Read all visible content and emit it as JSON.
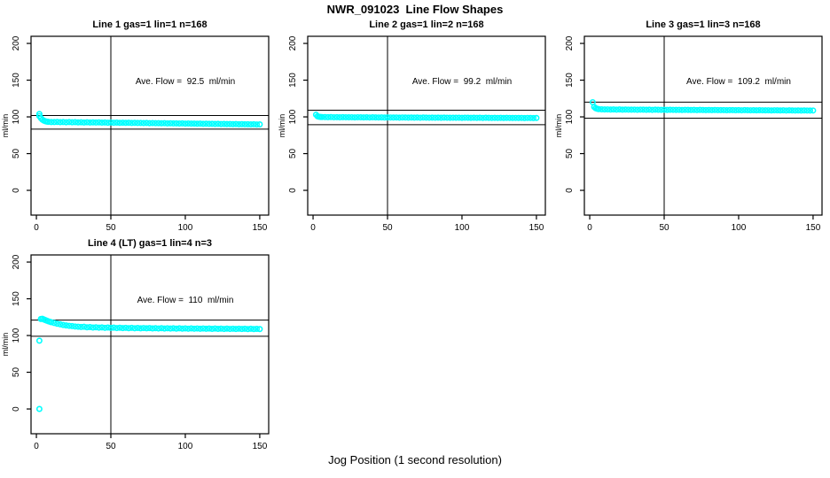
{
  "figure": {
    "main_title": "NWR_091023  Line Flow Shapes",
    "x_axis_label": "Jog Position (1 second resolution)",
    "background_color": "#FFFFFF",
    "point_color": "#00FFFF",
    "axis_color": "#000000"
  },
  "chart_data": [
    {
      "type": "scatter",
      "title": "Line 1 gas=1 lin=1 n=168",
      "ylabel": "ml/min",
      "n": 168,
      "ave_flow": 92.5,
      "ave_flow_label": "Ave. Flow =  92.5  ml/min",
      "x_ticks": [
        0,
        50,
        100,
        150
      ],
      "y_ticks": [
        0,
        50,
        100,
        150,
        200
      ],
      "xlim": [
        -3.6,
        156
      ],
      "ylim": [
        -33.7,
        209.7
      ],
      "vline_x": 50,
      "hlines": [
        101.8,
        83.3
      ],
      "legend": "none",
      "grid": false,
      "points": [
        [
          2,
          104
        ],
        [
          2,
          101
        ],
        [
          3,
          98.4
        ],
        [
          4,
          96.2
        ],
        [
          5,
          94.9
        ],
        [
          6,
          94.1
        ],
        [
          7,
          93.6
        ],
        [
          8,
          93.3
        ],
        [
          10,
          93.0
        ],
        [
          12,
          92.9
        ],
        [
          14,
          93.1
        ],
        [
          16,
          92.8
        ],
        [
          18,
          92.9
        ],
        [
          20,
          92.7
        ],
        [
          22,
          92.9
        ],
        [
          24,
          92.6
        ],
        [
          26,
          92.8
        ],
        [
          28,
          92.5
        ],
        [
          30,
          92.7
        ],
        [
          32,
          92.4
        ],
        [
          34,
          92.6
        ],
        [
          36,
          92.4
        ],
        [
          38,
          92.5
        ],
        [
          40,
          92.3
        ],
        [
          42,
          92.5
        ],
        [
          44,
          92.2
        ],
        [
          46,
          92.4
        ],
        [
          48,
          92.1
        ],
        [
          50,
          92.3
        ],
        [
          52,
          92.0
        ],
        [
          54,
          92.2
        ],
        [
          56,
          91.9
        ],
        [
          58,
          92.1
        ],
        [
          60,
          91.9
        ],
        [
          62,
          92.0
        ],
        [
          64,
          91.8
        ],
        [
          66,
          91.9
        ],
        [
          68,
          91.7
        ],
        [
          70,
          91.8
        ],
        [
          72,
          91.6
        ],
        [
          74,
          91.7
        ],
        [
          76,
          91.5
        ],
        [
          78,
          91.6
        ],
        [
          80,
          91.4
        ],
        [
          82,
          91.5
        ],
        [
          84,
          91.3
        ],
        [
          86,
          91.4
        ],
        [
          88,
          91.2
        ],
        [
          90,
          91.3
        ],
        [
          92,
          91.1
        ],
        [
          94,
          91.2
        ],
        [
          96,
          91.0
        ],
        [
          98,
          91.1
        ],
        [
          100,
          90.9
        ],
        [
          102,
          91.0
        ],
        [
          104,
          90.8
        ],
        [
          106,
          90.9
        ],
        [
          108,
          90.7
        ],
        [
          110,
          90.8
        ],
        [
          112,
          90.6
        ],
        [
          114,
          90.7
        ],
        [
          116,
          90.5
        ],
        [
          118,
          90.6
        ],
        [
          120,
          90.4
        ],
        [
          122,
          90.5
        ],
        [
          124,
          90.3
        ],
        [
          126,
          90.4
        ],
        [
          128,
          90.2
        ],
        [
          130,
          90.3
        ],
        [
          132,
          90.1
        ],
        [
          134,
          90.2
        ],
        [
          136,
          90.0
        ],
        [
          138,
          90.1
        ],
        [
          140,
          89.9
        ],
        [
          142,
          90.0
        ],
        [
          144,
          89.8
        ],
        [
          146,
          89.9
        ],
        [
          148,
          89.7
        ],
        [
          150,
          89.8
        ]
      ]
    },
    {
      "type": "scatter",
      "title": "Line 2 gas=1 lin=2 n=168",
      "ylabel": "ml/min",
      "n": 168,
      "ave_flow": 99.2,
      "ave_flow_label": "Ave. Flow =  99.2  ml/min",
      "x_ticks": [
        0,
        50,
        100,
        150
      ],
      "y_ticks": [
        0,
        50,
        100,
        150,
        200
      ],
      "xlim": [
        -3.6,
        156
      ],
      "ylim": [
        -33.7,
        209.7
      ],
      "vline_x": 50,
      "hlines": [
        109.1,
        89.3
      ],
      "legend": "none",
      "grid": false,
      "points": [
        [
          2,
          103
        ],
        [
          3,
          100.8
        ],
        [
          4,
          100.2
        ],
        [
          5,
          99.9
        ],
        [
          6,
          99.8
        ],
        [
          8,
          99.7
        ],
        [
          10,
          99.6
        ],
        [
          12,
          99.7
        ],
        [
          14,
          99.5
        ],
        [
          16,
          99.6
        ],
        [
          18,
          99.4
        ],
        [
          20,
          99.6
        ],
        [
          22,
          99.5
        ],
        [
          24,
          99.4
        ],
        [
          26,
          99.5
        ],
        [
          28,
          99.3
        ],
        [
          30,
          99.5
        ],
        [
          32,
          99.4
        ],
        [
          34,
          99.3
        ],
        [
          36,
          99.4
        ],
        [
          38,
          99.2
        ],
        [
          40,
          99.4
        ],
        [
          42,
          99.3
        ],
        [
          44,
          99.2
        ],
        [
          46,
          99.3
        ],
        [
          48,
          99.1
        ],
        [
          50,
          99.3
        ],
        [
          52,
          99.2
        ],
        [
          54,
          99.1
        ],
        [
          56,
          99.2
        ],
        [
          58,
          99.0
        ],
        [
          60,
          99.2
        ],
        [
          62,
          99.1
        ],
        [
          64,
          99.0
        ],
        [
          66,
          99.1
        ],
        [
          68,
          99.0
        ],
        [
          70,
          99.1
        ],
        [
          72,
          98.9
        ],
        [
          74,
          99.1
        ],
        [
          76,
          99.0
        ],
        [
          78,
          98.9
        ],
        [
          80,
          99.0
        ],
        [
          82,
          98.9
        ],
        [
          84,
          99.0
        ],
        [
          86,
          98.8
        ],
        [
          88,
          99.0
        ],
        [
          90,
          98.9
        ],
        [
          92,
          98.8
        ],
        [
          94,
          98.9
        ],
        [
          96,
          98.8
        ],
        [
          98,
          98.9
        ],
        [
          100,
          98.7
        ],
        [
          102,
          98.9
        ],
        [
          104,
          98.8
        ],
        [
          106,
          98.7
        ],
        [
          108,
          98.8
        ],
        [
          110,
          98.7
        ],
        [
          112,
          98.8
        ],
        [
          114,
          98.6
        ],
        [
          116,
          98.8
        ],
        [
          118,
          98.7
        ],
        [
          120,
          98.6
        ],
        [
          122,
          98.7
        ],
        [
          124,
          98.6
        ],
        [
          126,
          98.7
        ],
        [
          128,
          98.5
        ],
        [
          130,
          98.7
        ],
        [
          132,
          98.6
        ],
        [
          134,
          98.5
        ],
        [
          136,
          98.6
        ],
        [
          138,
          98.5
        ],
        [
          140,
          98.6
        ],
        [
          142,
          98.4
        ],
        [
          144,
          98.6
        ],
        [
          146,
          98.5
        ],
        [
          148,
          98.4
        ],
        [
          150,
          98.5
        ]
      ]
    },
    {
      "type": "scatter",
      "title": "Line 3 gas=1 lin=3 n=168",
      "ylabel": "ml/min",
      "n": 168,
      "ave_flow": 109.2,
      "ave_flow_label": "Ave. Flow =  109.2  ml/min",
      "x_ticks": [
        0,
        50,
        100,
        150
      ],
      "y_ticks": [
        0,
        50,
        100,
        150,
        200
      ],
      "xlim": [
        -3.6,
        156
      ],
      "ylim": [
        -33.7,
        209.7
      ],
      "vline_x": 50,
      "hlines": [
        120.1,
        98.3
      ],
      "legend": "none",
      "grid": false,
      "points": [
        [
          2,
          120
        ],
        [
          3,
          113.5
        ],
        [
          4,
          111.8
        ],
        [
          5,
          111.0
        ],
        [
          6,
          110.6
        ],
        [
          8,
          110.3
        ],
        [
          10,
          110.1
        ],
        [
          12,
          110.2
        ],
        [
          14,
          110.0
        ],
        [
          16,
          110.1
        ],
        [
          18,
          109.9
        ],
        [
          20,
          110.1
        ],
        [
          22,
          109.8
        ],
        [
          24,
          110.0
        ],
        [
          26,
          109.9
        ],
        [
          28,
          109.8
        ],
        [
          30,
          109.9
        ],
        [
          32,
          109.7
        ],
        [
          34,
          109.9
        ],
        [
          36,
          109.8
        ],
        [
          38,
          109.7
        ],
        [
          40,
          109.8
        ],
        [
          42,
          109.6
        ],
        [
          44,
          109.8
        ],
        [
          46,
          109.7
        ],
        [
          48,
          109.6
        ],
        [
          50,
          109.7
        ],
        [
          52,
          109.5
        ],
        [
          54,
          109.7
        ],
        [
          56,
          109.6
        ],
        [
          58,
          109.5
        ],
        [
          60,
          109.6
        ],
        [
          62,
          109.4
        ],
        [
          64,
          109.6
        ],
        [
          66,
          109.5
        ],
        [
          68,
          109.4
        ],
        [
          70,
          109.5
        ],
        [
          72,
          109.3
        ],
        [
          74,
          109.5
        ],
        [
          76,
          109.4
        ],
        [
          78,
          109.3
        ],
        [
          80,
          109.4
        ],
        [
          82,
          109.2
        ],
        [
          84,
          109.4
        ],
        [
          86,
          109.3
        ],
        [
          88,
          109.2
        ],
        [
          90,
          109.3
        ],
        [
          92,
          109.1
        ],
        [
          94,
          109.3
        ],
        [
          96,
          109.2
        ],
        [
          98,
          109.1
        ],
        [
          100,
          109.2
        ],
        [
          102,
          109.0
        ],
        [
          104,
          109.2
        ],
        [
          106,
          109.1
        ],
        [
          108,
          109.0
        ],
        [
          110,
          109.1
        ],
        [
          112,
          108.9
        ],
        [
          114,
          109.1
        ],
        [
          116,
          109.0
        ],
        [
          118,
          108.9
        ],
        [
          120,
          109.0
        ],
        [
          122,
          108.8
        ],
        [
          124,
          109.0
        ],
        [
          126,
          108.9
        ],
        [
          128,
          108.8
        ],
        [
          130,
          108.9
        ],
        [
          132,
          108.7
        ],
        [
          134,
          108.9
        ],
        [
          136,
          108.8
        ],
        [
          138,
          108.7
        ],
        [
          140,
          108.8
        ],
        [
          142,
          108.6
        ],
        [
          144,
          108.8
        ],
        [
          146,
          108.7
        ],
        [
          148,
          108.6
        ],
        [
          150,
          108.7
        ]
      ]
    },
    {
      "type": "scatter",
      "title": "Line 4 (LT) gas=1 lin=4 n=3",
      "ylabel": "ml/min",
      "n": 3,
      "ave_flow": 110,
      "ave_flow_label": "Ave. Flow =  110  ml/min",
      "x_ticks": [
        0,
        50,
        100,
        150
      ],
      "y_ticks": [
        0,
        50,
        100,
        150,
        200
      ],
      "xlim": [
        -3.6,
        156
      ],
      "ylim": [
        -33.7,
        209.7
      ],
      "vline_x": 50,
      "hlines": [
        121,
        99
      ],
      "legend": "none",
      "grid": false,
      "points": [
        [
          2,
          0
        ],
        [
          2,
          93
        ],
        [
          3,
          122.5
        ],
        [
          4,
          122.8
        ],
        [
          5,
          121.9
        ],
        [
          6,
          121.0
        ],
        [
          7,
          120.2
        ],
        [
          8,
          119.4
        ],
        [
          9,
          118.8
        ],
        [
          10,
          118.1
        ],
        [
          12,
          117.0
        ],
        [
          14,
          116.0
        ],
        [
          16,
          115.2
        ],
        [
          18,
          114.4
        ],
        [
          20,
          113.8
        ],
        [
          22,
          113.2
        ],
        [
          24,
          112.8
        ],
        [
          26,
          112.3
        ],
        [
          28,
          112.0
        ],
        [
          30,
          111.6
        ],
        [
          32,
          111.9
        ],
        [
          34,
          111.2
        ],
        [
          36,
          111.5
        ],
        [
          38,
          110.9
        ],
        [
          40,
          111.2
        ],
        [
          42,
          110.7
        ],
        [
          44,
          111.0
        ],
        [
          46,
          110.5
        ],
        [
          48,
          110.9
        ],
        [
          50,
          110.4
        ],
        [
          52,
          110.7
        ],
        [
          54,
          110.2
        ],
        [
          56,
          110.6
        ],
        [
          58,
          110.1
        ],
        [
          60,
          110.5
        ],
        [
          62,
          110.0
        ],
        [
          64,
          110.4
        ],
        [
          66,
          109.9
        ],
        [
          68,
          110.3
        ],
        [
          70,
          109.8
        ],
        [
          72,
          110.2
        ],
        [
          74,
          109.8
        ],
        [
          76,
          110.1
        ],
        [
          78,
          109.7
        ],
        [
          80,
          110.0
        ],
        [
          82,
          109.6
        ],
        [
          84,
          110.0
        ],
        [
          86,
          109.5
        ],
        [
          88,
          109.9
        ],
        [
          90,
          109.5
        ],
        [
          92,
          109.8
        ],
        [
          94,
          109.4
        ],
        [
          96,
          109.8
        ],
        [
          98,
          109.4
        ],
        [
          100,
          109.7
        ],
        [
          102,
          109.3
        ],
        [
          104,
          109.7
        ],
        [
          106,
          109.3
        ],
        [
          108,
          109.6
        ],
        [
          110,
          109.2
        ],
        [
          112,
          109.6
        ],
        [
          114,
          109.2
        ],
        [
          116,
          109.5
        ],
        [
          118,
          109.1
        ],
        [
          120,
          109.5
        ],
        [
          122,
          109.1
        ],
        [
          124,
          109.4
        ],
        [
          126,
          109.0
        ],
        [
          128,
          109.4
        ],
        [
          130,
          109.0
        ],
        [
          132,
          109.3
        ],
        [
          134,
          108.9
        ],
        [
          136,
          109.3
        ],
        [
          138,
          108.9
        ],
        [
          140,
          109.2
        ],
        [
          142,
          108.8
        ],
        [
          144,
          109.2
        ],
        [
          146,
          108.8
        ],
        [
          148,
          109.1
        ],
        [
          150,
          108.8
        ]
      ]
    }
  ]
}
